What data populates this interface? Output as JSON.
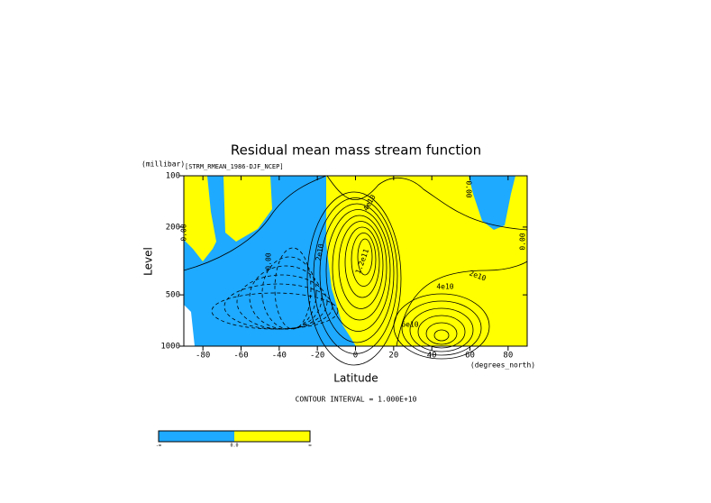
{
  "chart_data": {
    "type": "contour",
    "title": "Residual mean mass stream function",
    "subtitle": "[STRM_RMEAN_1986-DJF_NCEP]",
    "y_unit": "(millibar)",
    "ylabel": "Level",
    "xlabel": "Latitude",
    "x_unit": "(degrees_north)",
    "footnote": "CONTOUR INTERVAL = 1.000E+10",
    "xlim": [
      -90,
      90
    ],
    "xticks": [
      -80,
      -60,
      -40,
      -20,
      0,
      20,
      40,
      60,
      80
    ],
    "ylim": [
      100,
      1000
    ],
    "yticks": [
      100,
      200,
      500,
      1000
    ],
    "ylog": true,
    "yinverted": true,
    "negative_color": "#1eaaff",
    "positive_color": "#ffff00",
    "contour_labels": [
      "0.00",
      "0.00",
      "2e10",
      "4e10",
      "1.2e11",
      "2e10",
      "4e10",
      "6e10",
      "0.00",
      "0.00"
    ],
    "colorbar_labels": [
      "-∞",
      "0.0",
      "∞"
    ]
  }
}
